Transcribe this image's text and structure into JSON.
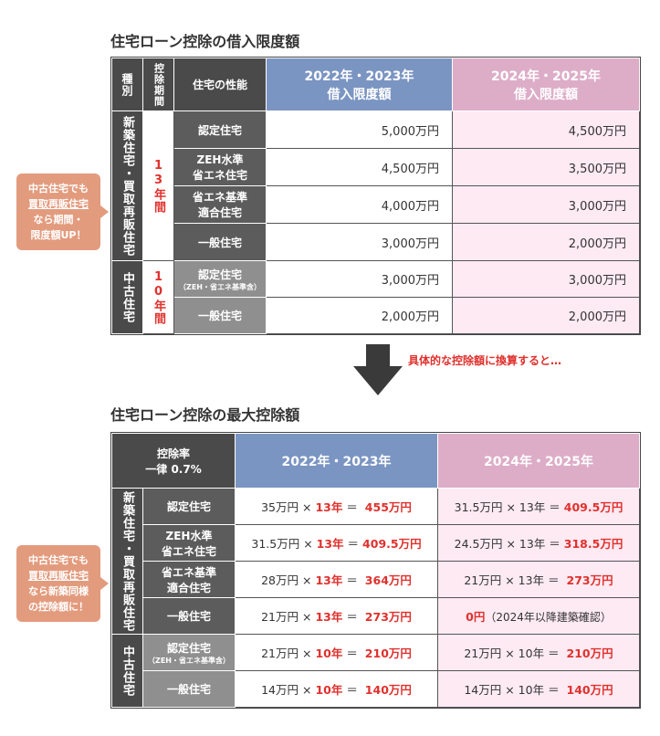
{
  "table1": {
    "title": "住宅ローン控除の借入限度額",
    "headers": {
      "kind": "種別",
      "period": "控除期間",
      "performance": "住宅の性能",
      "col_a": [
        "2022年・2023年",
        "借入限度額"
      ],
      "col_b": [
        "2024年・2025年",
        "借入限度額"
      ]
    },
    "new_group": "新築住宅・買取再販住宅",
    "new_period": "13年間",
    "used_group": "中古住宅",
    "used_period": "10年間",
    "rows": [
      {
        "type": [
          "認定住宅"
        ],
        "a": "5,000万円",
        "b": "4,500万円"
      },
      {
        "type": [
          "ZEH水準",
          "省エネ住宅"
        ],
        "a": "4,500万円",
        "b": "3,500万円"
      },
      {
        "type": [
          "省エネ基準",
          "適合住宅"
        ],
        "a": "4,000万円",
        "b": "3,000万円"
      },
      {
        "type": [
          "一般住宅"
        ],
        "a": "3,000万円",
        "b": "2,000万円"
      },
      {
        "type": [
          "認定住宅"
        ],
        "type_small": "（ZEH・省エネ基準含）",
        "a": "3,000万円",
        "b": "3,000万円"
      },
      {
        "type": [
          "一般住宅"
        ],
        "a": "2,000万円",
        "b": "2,000万円"
      }
    ]
  },
  "bubble1": [
    "中古住宅でも",
    "買取再販住宅",
    "なら期間・",
    "限度額UP！"
  ],
  "transition_note": "具体的な控除額に換算すると…",
  "table2": {
    "title": "住宅ローン控除の最大控除額",
    "headers": {
      "rate": [
        "控除率",
        "一律 0.7%"
      ],
      "col_a": "2022年・2023年",
      "col_b": "2024年・2025年"
    },
    "new_group": "新築住宅・買取再販住宅",
    "used_group": "中古住宅",
    "rows": [
      {
        "type": [
          "認定住宅"
        ],
        "a_base": "35万円 ×",
        "a_years": "13年",
        "a_eq": "＝",
        "a_total": "455万円",
        "b_base": "31.5万円 × 13年 ＝",
        "b_total": "409.5万円"
      },
      {
        "type": [
          "ZEH水準",
          "省エネ住宅"
        ],
        "a_base": "31.5万円 ×",
        "a_years": "13年",
        "a_eq": "＝",
        "a_total": "409.5万円",
        "b_base": "24.5万円 × 13年 ＝",
        "b_total": "318.5万円"
      },
      {
        "type": [
          "省エネ基準",
          "適合住宅"
        ],
        "a_base": "28万円 ×",
        "a_years": "13年",
        "a_eq": "＝",
        "a_total": "364万円",
        "b_base": "21万円 × 13年 ＝",
        "b_total": "273万円"
      },
      {
        "type": [
          "一般住宅"
        ],
        "a_base": "21万円 ×",
        "a_years": "13年",
        "a_eq": "＝",
        "a_total": "273万円",
        "b_base": "",
        "b_total": "0円",
        "b_note": "（2024年以降建築確認）"
      },
      {
        "type": [
          "認定住宅"
        ],
        "type_small": "（ZEH・省エネ基準含）",
        "a_base": "21万円 ×",
        "a_years": "10年",
        "a_eq": "＝",
        "a_total": "210万円",
        "b_base": "21万円 × 10年 ＝",
        "b_total": "210万円"
      },
      {
        "type": [
          "一般住宅"
        ],
        "a_base": "14万円 ×",
        "a_years": "10年",
        "a_eq": "＝",
        "a_total": "140万円",
        "b_base": "14万円 × 10年 ＝",
        "b_total": "140万円"
      }
    ]
  },
  "bubble2": [
    "中古住宅でも",
    "買取再販住宅",
    "なら新築同様",
    "の控除額に！"
  ],
  "colors": {
    "blue_header": "#7b95c2",
    "pink_header": "#ddadc8",
    "pink_cell": "#fdeaf3",
    "accent_red": "#e0312d",
    "bubble": "#e39b7e"
  },
  "icons": {
    "arrow": "down-arrow-icon"
  }
}
